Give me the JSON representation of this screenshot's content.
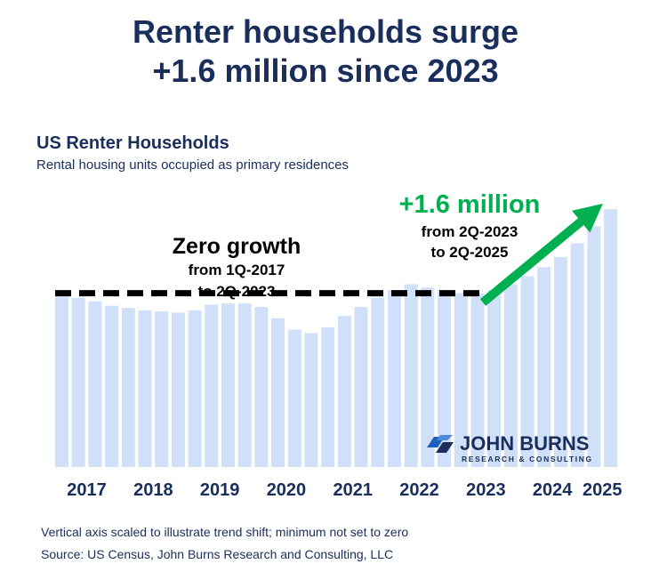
{
  "headline": {
    "line1": "Renter households surge",
    "line2": "+1.6 million since 2023"
  },
  "chart_title": "US Renter Households",
  "chart_subtitle": "Rental housing units occupied as primary residences",
  "annotations": {
    "zero_growth": {
      "title": "Zero growth",
      "line1": "from 1Q-2017",
      "line2": "to 2Q-2023"
    },
    "growth": {
      "title": "+1.6 million",
      "line1": "from 2Q-2023",
      "line2": "to 2Q-2025"
    }
  },
  "logo": {
    "name": "JOHN BURNS",
    "tagline": "RESEARCH & CONSULTING"
  },
  "footnotes": [
    "Vertical axis scaled to illustrate trend shift; minimum not set to zero",
    "Source: US Census, John Burns Research and Consulting, LLC"
  ],
  "colors": {
    "bar": "#cfe0f8",
    "headline": "#1a2e5c",
    "growth_arrow": "#00b050",
    "dashed_line": "#000000",
    "logo_blue": "#1f5fbf"
  },
  "chart_data": {
    "type": "bar",
    "x_tick_labels": [
      "2017",
      "2018",
      "2019",
      "2020",
      "2021",
      "2022",
      "2023",
      "2024",
      "2025"
    ],
    "quarters": [
      "1Q-2017",
      "2Q-2017",
      "3Q-2017",
      "4Q-2017",
      "1Q-2018",
      "2Q-2018",
      "3Q-2018",
      "4Q-2018",
      "1Q-2019",
      "2Q-2019",
      "3Q-2019",
      "4Q-2019",
      "1Q-2020",
      "2Q-2020",
      "3Q-2020",
      "4Q-2020",
      "1Q-2021",
      "2Q-2021",
      "3Q-2021",
      "4Q-2021",
      "1Q-2022",
      "2Q-2022",
      "3Q-2022",
      "4Q-2022",
      "1Q-2023",
      "2Q-2023",
      "3Q-2023",
      "4Q-2023",
      "1Q-2024",
      "2Q-2024",
      "3Q-2024",
      "4Q-2024",
      "1Q-2025",
      "2Q-2025"
    ],
    "values": [
      100,
      99,
      96,
      92,
      90,
      88,
      87,
      86,
      88,
      93,
      94,
      94,
      91,
      81,
      71,
      68,
      73,
      83,
      91,
      99,
      106,
      111,
      108,
      106,
      103,
      103,
      106,
      111,
      118,
      126,
      135,
      147,
      162,
      177
    ],
    "ylim": [
      -50,
      185
    ],
    "reference_line": {
      "from": "1Q-2017",
      "to": "2Q-2023",
      "value": 103
    },
    "xlabel": "",
    "ylabel": ""
  }
}
